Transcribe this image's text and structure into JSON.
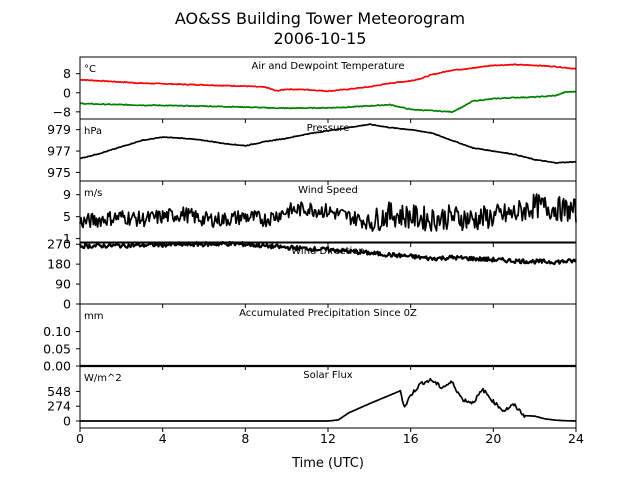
{
  "figure": {
    "title_line1": "AO&SS Building Tower Meteorogram",
    "title_line2": "2006-10-15",
    "xlabel": "Time (UTC)",
    "x_ticks": [
      "0",
      "4",
      "8",
      "12",
      "16",
      "20",
      "24"
    ]
  },
  "chart_data": [
    {
      "type": "line",
      "title": "Air and Dewpoint Temperature",
      "unit": "°C",
      "xlim": [
        0,
        24
      ],
      "ylim": [
        -11,
        15
      ],
      "y_ticks": [
        8,
        0,
        -8
      ],
      "y_tick_labels": [
        "8",
        "0",
        "−8"
      ],
      "series": [
        {
          "color": "#ff0000",
          "x": [
            0,
            1,
            2,
            3,
            4,
            5,
            6,
            7,
            8,
            9,
            9.5,
            10,
            11,
            12,
            13,
            14,
            15,
            16,
            16.5,
            17,
            18,
            19,
            19.5,
            20,
            21,
            22,
            23,
            24
          ],
          "y": [
            5.5,
            5,
            4.5,
            4,
            3.8,
            3.5,
            3.3,
            3,
            2.8,
            2.3,
            0.8,
            1.5,
            1.3,
            0.7,
            1.5,
            2.5,
            4,
            5,
            6,
            7.5,
            9.5,
            10.3,
            11,
            11.5,
            11.8,
            11.5,
            11,
            10
          ]
        },
        {
          "color": "#008000",
          "x": [
            0,
            1,
            2,
            3,
            4,
            5,
            6,
            7,
            8,
            9,
            10,
            11,
            12,
            13,
            14,
            15,
            16,
            17,
            18,
            18.5,
            19,
            20,
            21,
            22,
            23,
            23.5,
            24
          ],
          "y": [
            -4.5,
            -4.8,
            -5,
            -5.2,
            -5.3,
            -5.5,
            -5.6,
            -5.8,
            -6,
            -6.3,
            -6.5,
            -6.4,
            -6.3,
            -6,
            -5.5,
            -5,
            -7,
            -7.5,
            -8,
            -6,
            -3.5,
            -2.5,
            -2,
            -1.8,
            -1.2,
            0.3,
            0.5
          ]
        }
      ]
    },
    {
      "type": "line",
      "title": "Pressure",
      "unit": "hPa",
      "xlim": [
        0,
        24
      ],
      "ylim": [
        974.2,
        980.0
      ],
      "y_ticks": [
        979,
        977,
        975
      ],
      "y_tick_labels": [
        "979",
        "977",
        "975"
      ],
      "series": [
        {
          "color": "#000000",
          "x": [
            0,
            1,
            2,
            3,
            4,
            5,
            6,
            7,
            8,
            9,
            10,
            11,
            12,
            13,
            14,
            15,
            16,
            17,
            18,
            19,
            20,
            21,
            22,
            23,
            24
          ],
          "y": [
            976.3,
            976.8,
            977.4,
            978.0,
            978.3,
            978.2,
            978.0,
            977.7,
            977.5,
            977.9,
            978.2,
            978.6,
            978.9,
            979.2,
            979.5,
            979.2,
            979.0,
            978.7,
            978.0,
            977.3,
            977.0,
            976.7,
            976.2,
            975.9,
            976.0
          ]
        }
      ]
    },
    {
      "type": "line",
      "title": "Wind Speed",
      "unit": "m/s",
      "xlim": [
        0,
        24
      ],
      "ylim": [
        0.2,
        11.5
      ],
      "y_ticks": [
        9,
        5,
        1
      ],
      "y_tick_labels": [
        "9",
        "5",
        "1"
      ],
      "series": [
        {
          "color": "#000000",
          "x": [
            0,
            1,
            2,
            3,
            4,
            5,
            6,
            7,
            8,
            9,
            10,
            11,
            12,
            13,
            14,
            15,
            16,
            17,
            18,
            19,
            20,
            21,
            22,
            23,
            24
          ],
          "y": [
            4,
            4.5,
            5,
            4.5,
            5,
            5.5,
            4.5,
            4.5,
            5,
            4.5,
            6,
            6.5,
            6,
            5,
            4,
            5.5,
            5,
            4.5,
            5,
            4.5,
            5,
            5.5,
            7,
            6.5,
            6
          ]
        }
      ]
    },
    {
      "type": "line",
      "title": "Wind Direction",
      "unit": "",
      "xlim": [
        0,
        24
      ],
      "ylim": [
        0,
        280
      ],
      "y_ticks": [
        270,
        180,
        90,
        0
      ],
      "y_tick_labels": [
        "270",
        "180",
        "90",
        "0"
      ],
      "series": [
        {
          "color": "#000000",
          "x": [
            0,
            2,
            4,
            6,
            7,
            8,
            9,
            10,
            11,
            12,
            13,
            14,
            15,
            16,
            17,
            18,
            19,
            20,
            21,
            22,
            23,
            24
          ],
          "y": [
            262,
            264,
            268,
            270,
            272,
            270,
            262,
            255,
            250,
            245,
            238,
            230,
            222,
            215,
            205,
            210,
            205,
            200,
            195,
            192,
            190,
            195
          ]
        }
      ]
    },
    {
      "type": "line",
      "title": "Accumulated Precipitation Since 0Z",
      "unit": "mm",
      "xlim": [
        0,
        24
      ],
      "ylim": [
        0,
        0.18
      ],
      "y_ticks": [
        0.1,
        0.05,
        0.0
      ],
      "y_tick_labels": [
        "0.10",
        "0.05",
        "0.00"
      ],
      "series": [
        {
          "color": "#000000",
          "x": [
            0,
            24
          ],
          "y": [
            0,
            0
          ]
        }
      ]
    },
    {
      "type": "line",
      "title": "Solar Flux",
      "unit": "W/m^2",
      "xlim": [
        0,
        24
      ],
      "ylim": [
        -130,
        1020
      ],
      "y_ticks": [
        548,
        274,
        0
      ],
      "y_tick_labels": [
        "548",
        "274",
        "0"
      ],
      "series": [
        {
          "color": "#000000",
          "x": [
            0,
            12,
            12.5,
            13,
            14,
            15,
            15.5,
            15.7,
            16,
            16.5,
            17,
            17.5,
            18,
            18.5,
            19,
            19.5,
            20,
            20.5,
            21,
            21.5,
            22,
            22.5,
            23,
            23.5,
            24
          ],
          "y": [
            0,
            0,
            20,
            150,
            320,
            480,
            560,
            250,
            480,
            700,
            760,
            620,
            720,
            400,
            340,
            580,
            360,
            190,
            300,
            100,
            90,
            40,
            15,
            5,
            0
          ]
        }
      ]
    }
  ]
}
